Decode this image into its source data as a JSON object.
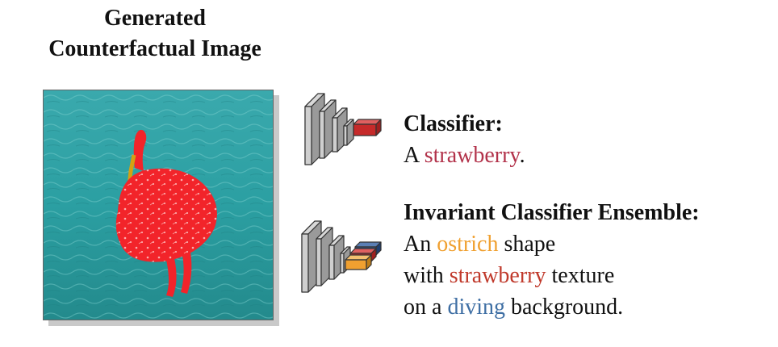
{
  "title": {
    "line1": "Generated",
    "line2": "Counterfactual Image"
  },
  "classifier": {
    "heading": "Classifier:",
    "prefix": "A ",
    "class_word": "strawberry",
    "suffix": "."
  },
  "ensemble": {
    "heading": "Invariant Classifier Ensemble:",
    "line1": {
      "prefix": "An ",
      "word": "ostrich",
      "suffix": " shape"
    },
    "line2": {
      "prefix": "with ",
      "word": "strawberry",
      "suffix": " texture"
    },
    "line3": {
      "prefix": "on a ",
      "word": "diving",
      "suffix": " background."
    }
  },
  "colors": {
    "strawberry_single": "#b2324a",
    "strawberry": "#c0392b",
    "ostrich": "#f0a030",
    "diving": "#3f6fa4",
    "water": "#2ba5a5",
    "ostrich_body": "#f2242a",
    "net_gray": "#b8b8b8"
  }
}
